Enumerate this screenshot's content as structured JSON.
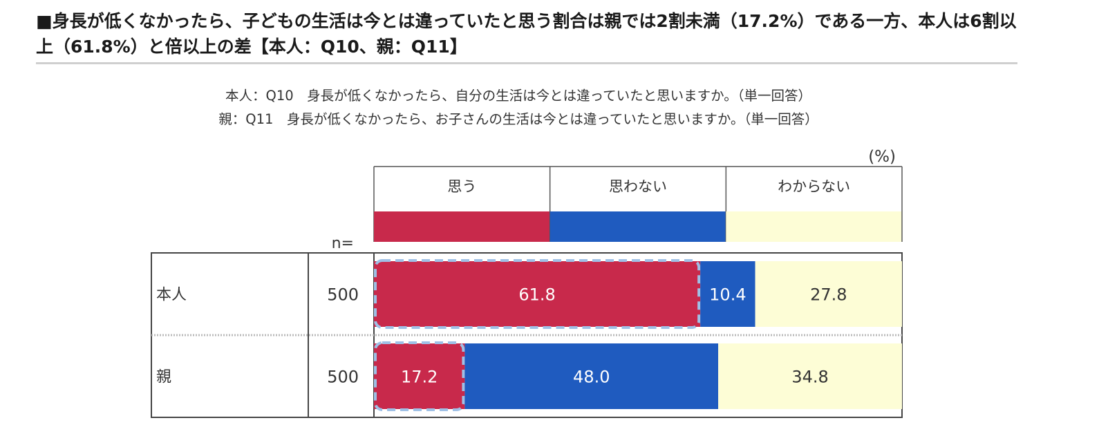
{
  "headline": "■身長が低くなかったら、子どもの生活は今とは違っていたと思う割合は親では2割未満（17.2%）である一方、本人は6割以上（61.8%）と倍以上の差【本人：Q10、親：Q11】",
  "questions": {
    "q1": "本人：Q10　身長が低くなかったら、自分の生活は今とは違っていたと思いますか。（単一回答）",
    "q2": "親：Q11　身長が低くなかったら、お子さんの生活は今とは違っていたと思いますか。（単一回答）"
  },
  "chart_data": {
    "type": "bar",
    "orientation": "horizontal",
    "stacked": true,
    "unit_label": "(%)",
    "n_label": "n=",
    "categories": [
      "本人",
      "親"
    ],
    "n": [
      "500",
      "500"
    ],
    "series": [
      {
        "name": "思う",
        "color": "#c8294b",
        "values": [
          61.8,
          17.2
        ]
      },
      {
        "name": "思わない",
        "color": "#1f5bbf",
        "values": [
          10.4,
          48.0
        ]
      },
      {
        "name": "わからない",
        "color": "#fdfdd6",
        "values": [
          27.8,
          34.8
        ]
      }
    ],
    "xlim": [
      0,
      100
    ],
    "highlight_series": "思う"
  }
}
